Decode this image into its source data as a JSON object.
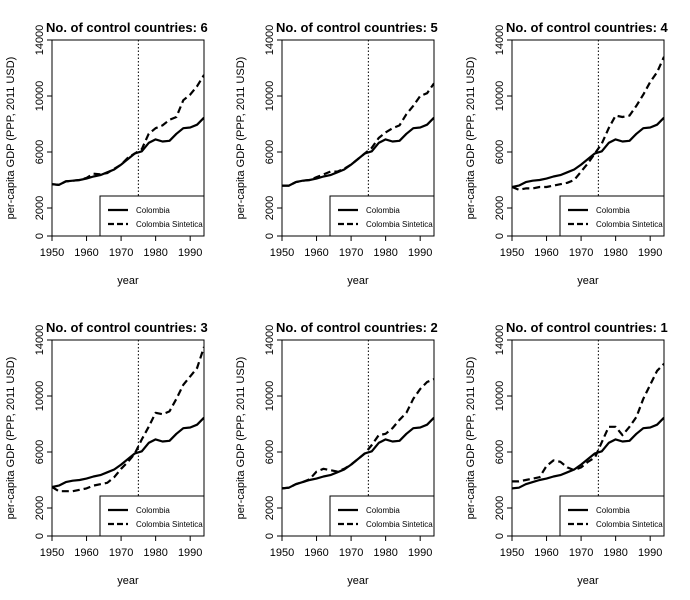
{
  "chart_data": [
    {
      "type": "line",
      "title": "No. of control countries: 6",
      "xlabel": "year",
      "ylabel": "per-capita GDP (PPP, 2011 USD)",
      "xlim": [
        1950,
        1994
      ],
      "ylim": [
        0,
        14000
      ],
      "xticks": [
        1950,
        1960,
        1970,
        1980,
        1990
      ],
      "yticks": [
        0,
        2000,
        6000,
        10000,
        14000
      ],
      "treatment_year": 1975,
      "legend": {
        "position": "bottom-right",
        "entries": [
          "Colombia",
          "Colombia Sintetica"
        ]
      },
      "x": [
        1950,
        1952,
        1954,
        1956,
        1958,
        1960,
        1962,
        1964,
        1966,
        1968,
        1970,
        1972,
        1974,
        1976,
        1978,
        1980,
        1982,
        1984,
        1986,
        1988,
        1990,
        1992,
        1994
      ],
      "series": [
        {
          "name": "Colombia",
          "style": "solid",
          "values": [
            3700,
            3650,
            3900,
            3950,
            4000,
            4100,
            4250,
            4350,
            4550,
            4750,
            5100,
            5500,
            5900,
            6050,
            6650,
            6900,
            6750,
            6800,
            7300,
            7700,
            7750,
            7950,
            8450
          ]
        },
        {
          "name": "Colombia Sintetica",
          "style": "dashed",
          "values": [
            3700,
            3650,
            3900,
            3950,
            4000,
            4150,
            4450,
            4400,
            4500,
            4800,
            5100,
            5600,
            5900,
            6200,
            7300,
            7700,
            7900,
            8300,
            8500,
            9700,
            10100,
            10700,
            11500
          ]
        }
      ]
    },
    {
      "type": "line",
      "title": "No. of control countries: 5",
      "xlabel": "year",
      "ylabel": "per-capita GDP (PPP, 2011 USD)",
      "xlim": [
        1950,
        1994
      ],
      "ylim": [
        0,
        14000
      ],
      "xticks": [
        1950,
        1960,
        1970,
        1980,
        1990
      ],
      "yticks": [
        0,
        2000,
        6000,
        10000,
        14000
      ],
      "treatment_year": 1975,
      "legend": {
        "position": "bottom-right",
        "entries": [
          "Colombia",
          "Colombia Sintetica"
        ]
      },
      "x": [
        1950,
        1952,
        1954,
        1956,
        1958,
        1960,
        1962,
        1964,
        1966,
        1968,
        1970,
        1972,
        1974,
        1976,
        1978,
        1980,
        1982,
        1984,
        1986,
        1988,
        1990,
        1992,
        1994
      ],
      "series": [
        {
          "name": "Colombia",
          "style": "solid",
          "values": [
            3600,
            3600,
            3850,
            3950,
            4000,
            4100,
            4250,
            4350,
            4550,
            4750,
            5100,
            5500,
            5900,
            6050,
            6650,
            6900,
            6750,
            6800,
            7300,
            7700,
            7750,
            7950,
            8450
          ]
        },
        {
          "name": "Colombia Sintetica",
          "style": "dashed",
          "values": [
            3600,
            3600,
            3850,
            3950,
            4000,
            4200,
            4400,
            4600,
            4600,
            4800,
            5100,
            5500,
            5900,
            6300,
            7000,
            7400,
            7700,
            7900,
            8700,
            9300,
            10000,
            10200,
            10900
          ]
        }
      ]
    },
    {
      "type": "line",
      "title": "No. of control countries: 4",
      "xlabel": "year",
      "ylabel": "per-capita GDP (PPP, 2011 USD)",
      "xlim": [
        1950,
        1994
      ],
      "ylim": [
        0,
        14000
      ],
      "xticks": [
        1950,
        1960,
        1970,
        1980,
        1990
      ],
      "yticks": [
        0,
        2000,
        6000,
        10000,
        14000
      ],
      "treatment_year": 1975,
      "legend": {
        "position": "bottom-right",
        "entries": [
          "Colombia",
          "Colombia Sintetica"
        ]
      },
      "x": [
        1950,
        1952,
        1954,
        1956,
        1958,
        1960,
        1962,
        1964,
        1966,
        1968,
        1970,
        1972,
        1974,
        1976,
        1978,
        1980,
        1982,
        1984,
        1986,
        1988,
        1990,
        1992,
        1994
      ],
      "series": [
        {
          "name": "Colombia",
          "style": "solid",
          "values": [
            3500,
            3600,
            3850,
            3950,
            4000,
            4100,
            4250,
            4350,
            4550,
            4750,
            5100,
            5500,
            5900,
            6050,
            6650,
            6900,
            6750,
            6800,
            7300,
            7700,
            7750,
            7950,
            8450
          ]
        },
        {
          "name": "Colombia Sintetica",
          "style": "dashed",
          "values": [
            3500,
            3300,
            3400,
            3400,
            3500,
            3500,
            3600,
            3700,
            3800,
            4000,
            4600,
            5200,
            5900,
            6600,
            7700,
            8600,
            8500,
            8600,
            9300,
            10100,
            11000,
            11700,
            12800
          ]
        }
      ]
    },
    {
      "type": "line",
      "title": "No. of control countries: 3",
      "xlabel": "year",
      "ylabel": "per-capita GDP (PPP, 2011 USD)",
      "xlim": [
        1950,
        1994
      ],
      "ylim": [
        0,
        14000
      ],
      "xticks": [
        1950,
        1960,
        1970,
        1980,
        1990
      ],
      "yticks": [
        0,
        2000,
        6000,
        10000,
        14000
      ],
      "treatment_year": 1975,
      "legend": {
        "position": "bottom-right",
        "entries": [
          "Colombia",
          "Colombia Sintetica"
        ]
      },
      "x": [
        1950,
        1952,
        1954,
        1956,
        1958,
        1960,
        1962,
        1964,
        1966,
        1968,
        1970,
        1972,
        1974,
        1976,
        1978,
        1980,
        1982,
        1984,
        1986,
        1988,
        1990,
        1992,
        1994
      ],
      "series": [
        {
          "name": "Colombia",
          "style": "solid",
          "values": [
            3500,
            3600,
            3850,
            3950,
            4000,
            4100,
            4250,
            4350,
            4550,
            4750,
            5100,
            5500,
            5900,
            6050,
            6650,
            6900,
            6750,
            6800,
            7300,
            7700,
            7750,
            7950,
            8450
          ]
        },
        {
          "name": "Colombia Sintetica",
          "style": "dashed",
          "values": [
            3500,
            3200,
            3200,
            3200,
            3300,
            3400,
            3600,
            3700,
            3800,
            4200,
            4800,
            5300,
            5900,
            6900,
            7800,
            8800,
            8700,
            8900,
            9800,
            10800,
            11400,
            12000,
            13500
          ]
        }
      ]
    },
    {
      "type": "line",
      "title": "No. of control countries: 2",
      "xlabel": "year",
      "ylabel": "per-capita GDP (PPP, 2011 USD)",
      "xlim": [
        1950,
        1994
      ],
      "ylim": [
        0,
        14000
      ],
      "xticks": [
        1950,
        1960,
        1970,
        1980,
        1990
      ],
      "yticks": [
        0,
        2000,
        6000,
        10000,
        14000
      ],
      "treatment_year": 1975,
      "legend": {
        "position": "bottom-right",
        "entries": [
          "Colombia",
          "Colombia Sintetica"
        ]
      },
      "x": [
        1950,
        1952,
        1954,
        1956,
        1958,
        1960,
        1962,
        1964,
        1966,
        1968,
        1970,
        1972,
        1974,
        1976,
        1978,
        1980,
        1982,
        1984,
        1986,
        1988,
        1990,
        1992,
        1994
      ],
      "series": [
        {
          "name": "Colombia",
          "style": "solid",
          "values": [
            3400,
            3450,
            3700,
            3850,
            4000,
            4100,
            4250,
            4350,
            4550,
            4750,
            5100,
            5500,
            5900,
            6050,
            6650,
            6900,
            6750,
            6800,
            7300,
            7700,
            7750,
            7950,
            8450
          ]
        },
        {
          "name": "Colombia Sintetica",
          "style": "dashed",
          "values": [
            3400,
            3450,
            3700,
            3850,
            4050,
            4600,
            4800,
            4700,
            4600,
            4800,
            5100,
            5500,
            5900,
            6500,
            7200,
            7300,
            7700,
            8300,
            8800,
            9800,
            10500,
            11000,
            11200
          ]
        }
      ]
    },
    {
      "type": "line",
      "title": "No. of control countries: 1",
      "xlabel": "year",
      "ylabel": "per-capita GDP (PPP, 2011 USD)",
      "xlim": [
        1950,
        1994
      ],
      "ylim": [
        0,
        14000
      ],
      "xticks": [
        1950,
        1960,
        1970,
        1980,
        1990
      ],
      "yticks": [
        0,
        2000,
        6000,
        10000,
        14000
      ],
      "treatment_year": 1975,
      "legend": {
        "position": "bottom-right",
        "entries": [
          "Colombia",
          "Colombia Sintetica"
        ]
      },
      "x": [
        1950,
        1952,
        1954,
        1956,
        1958,
        1960,
        1962,
        1964,
        1966,
        1968,
        1970,
        1972,
        1974,
        1976,
        1978,
        1980,
        1982,
        1984,
        1986,
        1988,
        1990,
        1992,
        1994
      ],
      "series": [
        {
          "name": "Colombia",
          "style": "solid",
          "values": [
            3400,
            3450,
            3700,
            3850,
            4000,
            4100,
            4250,
            4350,
            4550,
            4750,
            5100,
            5500,
            5900,
            6050,
            6650,
            6900,
            6750,
            6800,
            7300,
            7700,
            7750,
            7950,
            8450
          ]
        },
        {
          "name": "Colombia Sintetica",
          "style": "dashed",
          "values": [
            3900,
            3900,
            4000,
            4100,
            4200,
            5000,
            5400,
            5300,
            4900,
            4700,
            4900,
            5300,
            5600,
            6700,
            7800,
            7800,
            7200,
            7800,
            8500,
            9800,
            10800,
            11800,
            12300
          ]
        }
      ]
    }
  ]
}
